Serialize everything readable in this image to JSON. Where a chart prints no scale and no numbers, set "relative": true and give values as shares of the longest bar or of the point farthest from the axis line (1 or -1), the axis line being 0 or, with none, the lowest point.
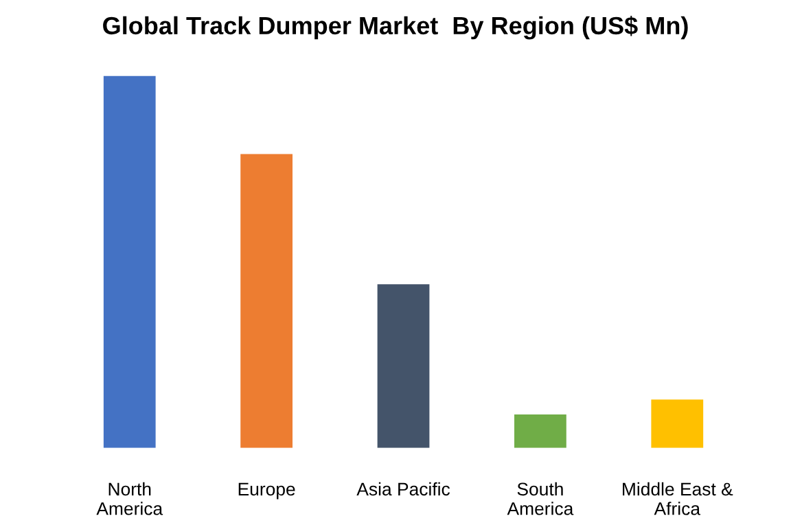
{
  "chart_data": {
    "type": "bar",
    "title": "Global Track Dumper Market  By Region (US$ Mn)",
    "relative": true,
    "categories": [
      "North\nAmerica",
      "Europe",
      "Asia Pacific",
      "South\nAmerica",
      "Middle East &\nAfrica"
    ],
    "values": [
      1,
      0.79,
      0.44,
      0.09,
      0.13
    ],
    "colors": [
      "#4472c4",
      "#ed7d31",
      "#44546a",
      "#70ad47",
      "#ffc000"
    ],
    "grid": false,
    "legend": false
  }
}
